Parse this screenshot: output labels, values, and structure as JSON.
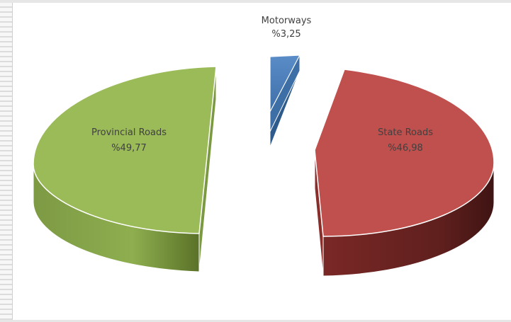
{
  "chart_data": {
    "type": "pie",
    "variant": "3d-exploded",
    "title": "",
    "slices": [
      {
        "name": "State Roads",
        "label": "State Roads",
        "value_label": "%46,98",
        "value": 46.98,
        "color": "#c0504d",
        "side_color": "#5e1f1d"
      },
      {
        "name": "Provincial Roads",
        "label": "Provincial Roads",
        "value_label": "%49,77",
        "value": 49.77,
        "color": "#9bbb59",
        "side_color": "#6f8a35"
      },
      {
        "name": "Motorways",
        "label": "Motorways",
        "value_label": "%3,25",
        "value": 3.25,
        "color": "#4f81bd",
        "side_color": "#2f5b8c"
      }
    ]
  }
}
